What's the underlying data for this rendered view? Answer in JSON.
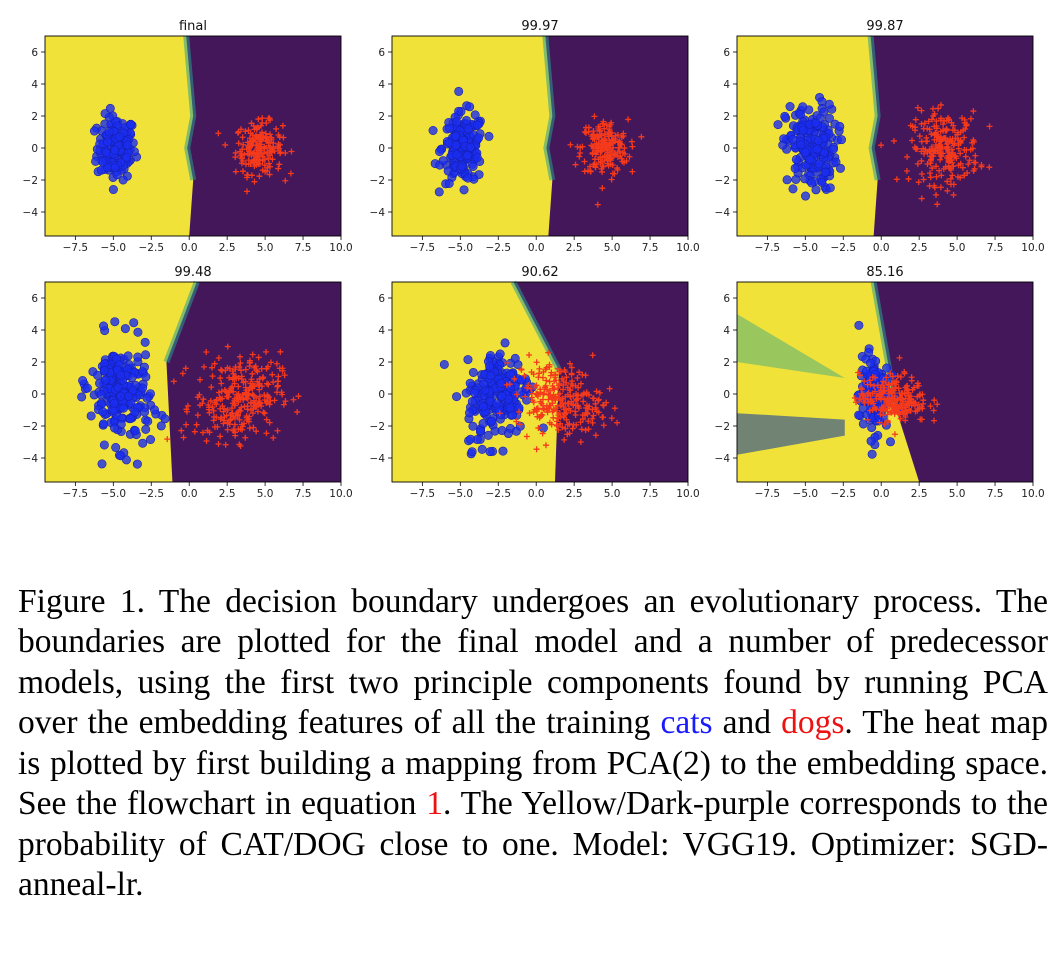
{
  "figure": {
    "colors": {
      "yellow": "#f1e23a",
      "purple": "#44165a",
      "cats": "#1a2df0",
      "dogs": "#f53a1c"
    },
    "x_ticks": [
      "−7.5",
      "−5.0",
      "−2.5",
      "0.0",
      "2.5",
      "5.0",
      "7.5",
      "10.0"
    ],
    "y_ticks": [
      "6",
      "4",
      "2",
      "0",
      "−2",
      "−4"
    ],
    "panels": [
      {
        "title": "final"
      },
      {
        "title": "99.97"
      },
      {
        "title": "99.87"
      },
      {
        "title": "99.48"
      },
      {
        "title": "90.62"
      },
      {
        "title": "85.16"
      }
    ]
  },
  "chart_data": {
    "type": "scatter",
    "xlim": [
      -9.5,
      10
    ],
    "ylim": [
      -5.5,
      7
    ],
    "x_ticks": [
      -7.5,
      -5.0,
      -2.5,
      0.0,
      2.5,
      5.0,
      7.5,
      10.0
    ],
    "y_ticks": [
      6,
      4,
      2,
      0,
      -2,
      -4
    ],
    "background": "heatmap (Yellow = CAT, Dark-purple = DOG)",
    "panels": [
      {
        "title": "final",
        "cats_center": [
          -4.8,
          0.0
        ],
        "dogs_center": [
          4.6,
          0.0
        ],
        "boundary_x": 0.0
      },
      {
        "title": "99.97",
        "cats_center": [
          -4.8,
          0.0
        ],
        "dogs_center": [
          4.5,
          0.0
        ],
        "boundary_x": 0.8
      },
      {
        "title": "99.87",
        "cats_center": [
          -4.6,
          0.0
        ],
        "dogs_center": [
          4.2,
          0.0
        ],
        "boundary_x": -0.5
      },
      {
        "title": "99.48",
        "cats_center": [
          -4.5,
          0.0
        ],
        "dogs_center": [
          3.2,
          -0.3
        ],
        "boundary_x": -1.5
      },
      {
        "title": "90.62",
        "cats_center": [
          -2.5,
          0.0
        ],
        "dogs_center": [
          1.5,
          -0.3
        ],
        "boundary_x": 1.5
      },
      {
        "title": "85.16",
        "cats_center": [
          -0.5,
          0.0
        ],
        "dogs_center": [
          0.8,
          -0.3
        ],
        "boundary_x": 0.5
      }
    ]
  },
  "caption": {
    "p1": "Figure 1. The decision boundary undergoes an evolutionary process. The boundaries are plotted for the final model and a number of predecessor models, using the first two principle components found by running PCA over the embedding features of all the training ",
    "cats": "cats",
    "and": " and ",
    "dogs": "dogs",
    "p2": ". The heat map is plotted by first building a mapping from PCA(2) to the embedding space. See the flowchart in equation ",
    "ref": "1",
    "p3": ". The Yellow/Dark-purple corresponds to the probability of CAT/DOG close to one. Model: VGG19. Optimizer: SGD-anneal-lr."
  }
}
